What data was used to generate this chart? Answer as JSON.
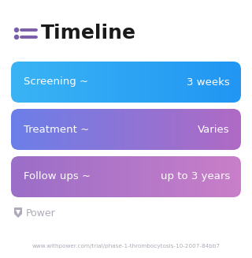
{
  "title": "Timeline",
  "title_fontsize": 18,
  "title_color": "#1a1a1a",
  "title_icon_color": "#7b5ea7",
  "background_color": "#ffffff",
  "rows": [
    {
      "label": "Screening ~",
      "value": "3 weeks",
      "color_left": "#3ab4f5",
      "color_right": "#2196f3"
    },
    {
      "label": "Treatment ~",
      "value": "Varies",
      "color_left": "#6b7fe8",
      "color_right": "#b06ac4"
    },
    {
      "label": "Follow ups ~",
      "value": "up to 3 years",
      "color_left": "#9b6ec8",
      "color_right": "#c97fc8"
    }
  ],
  "text_color": "#ffffff",
  "label_fontsize": 9.5,
  "value_fontsize": 9.5,
  "watermark_text": "Power",
  "watermark_color": "#b0aab8",
  "footer_text": "www.withpower.com/trial/phase-1-thrombocytosis-10-2007-84bb7",
  "footer_color": "#b0aab8",
  "footer_fontsize": 5.2
}
